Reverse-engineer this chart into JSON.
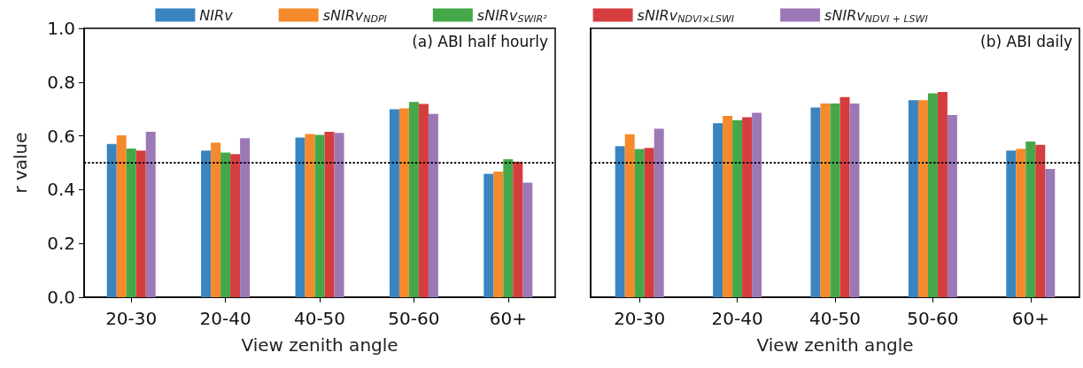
{
  "chart_data": [
    {
      "type": "bar",
      "categories": [
        "20-30",
        "20-40",
        "40-50",
        "50-60",
        "60+"
      ],
      "xlabel": "View zenith angle",
      "ylabel": "r value",
      "annotations": [
        "(a) ABI half hourly"
      ],
      "series": [
        {
          "name": "NIRv",
          "color": "#3a84bf",
          "values": [
            0.57,
            0.545,
            0.594,
            0.699,
            0.459
          ]
        },
        {
          "name": "sNIRv$_{NDPI}$",
          "color": "#f58a2c",
          "values": [
            0.602,
            0.575,
            0.607,
            0.702,
            0.467
          ]
        },
        {
          "name": "sNIRv$_{SWIR²}$",
          "color": "#44a849",
          "values": [
            0.553,
            0.538,
            0.604,
            0.726,
            0.513
          ]
        },
        {
          "name": "sNIRv$_{NDVI×LSWI}$",
          "color": "#d63d3e",
          "values": [
            0.545,
            0.532,
            0.615,
            0.719,
            0.504
          ]
        },
        {
          "name": "sNIRv$_{NDVI + LSWI}$",
          "color": "#9d78b7",
          "values": [
            0.615,
            0.591,
            0.611,
            0.682,
            0.426
          ]
        }
      ],
      "ylim": [
        0,
        1
      ],
      "yticks": [
        {
          "value": 0,
          "label": "0.0"
        },
        {
          "value": 0.2,
          "label": "0.2"
        },
        {
          "value": 0.4,
          "label": "0.4"
        },
        {
          "value": 0.6,
          "label": "0.6"
        },
        {
          "value": 0.8,
          "label": "0.8"
        },
        {
          "value": 1,
          "label": "1.0"
        }
      ],
      "ref_lines": [
        {
          "axis": "y",
          "value": 0.5,
          "color": "#000000",
          "line_style": "dotted"
        }
      ],
      "grid": false,
      "legend": "top"
    },
    {
      "type": "bar",
      "categories": [
        "20-30",
        "20-40",
        "40-50",
        "50-60",
        "60+"
      ],
      "xlabel": "View zenith angle",
      "annotations": [
        "(b) ABI daily"
      ],
      "series": [
        {
          "color": "#3a84bf",
          "values": [
            0.562,
            0.647,
            0.706,
            0.733,
            0.545
          ]
        },
        {
          "color": "#f58a2c",
          "values": [
            0.606,
            0.674,
            0.72,
            0.733,
            0.552
          ]
        },
        {
          "color": "#44a849",
          "values": [
            0.551,
            0.658,
            0.72,
            0.758,
            0.579
          ]
        },
        {
          "color": "#d63d3e",
          "values": [
            0.555,
            0.669,
            0.744,
            0.763,
            0.567
          ]
        },
        {
          "color": "#9d78b7",
          "values": [
            0.627,
            0.686,
            0.72,
            0.678,
            0.477
          ]
        }
      ],
      "ylim": [
        0,
        1
      ],
      "ref_lines": [
        {
          "axis": "y",
          "value": 0.5,
          "color": "#000000",
          "line_style": "dotted"
        }
      ],
      "grid": false,
      "tick_labels": "x",
      "legend": false
    }
  ]
}
